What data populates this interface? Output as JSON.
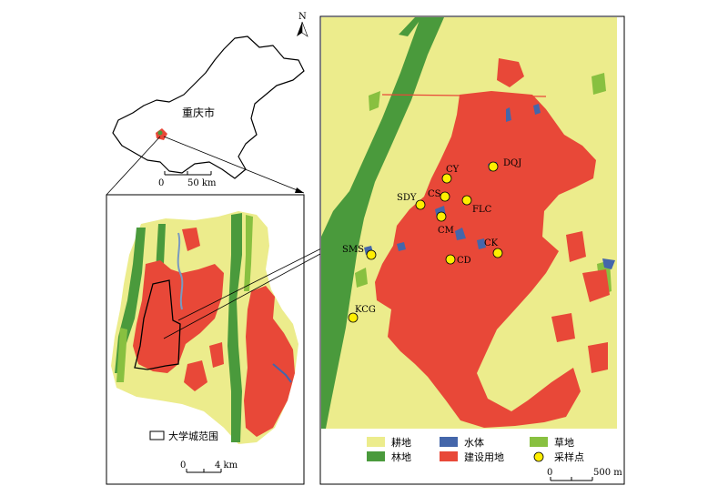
{
  "overview": {
    "region_label": "重庆市",
    "scale": {
      "zero": "0",
      "value": "50 km"
    }
  },
  "inset": {
    "boundary_legend_label": "大学城范围",
    "scale": {
      "zero": "0",
      "value": "4 km"
    }
  },
  "main_map": {
    "north_label": "N",
    "scale": {
      "zero": "0",
      "value": "500 m"
    },
    "sample_points": [
      {
        "label": "DQJ"
      },
      {
        "label": "CY"
      },
      {
        "label": "SDY"
      },
      {
        "label": "CS"
      },
      {
        "label": "FLC"
      },
      {
        "label": "CM"
      },
      {
        "label": "SMS"
      },
      {
        "label": "CK"
      },
      {
        "label": "CD"
      },
      {
        "label": "KCG"
      }
    ]
  },
  "legend": {
    "items": [
      {
        "label": "耕地",
        "color": "#ecec8c"
      },
      {
        "label": "水体",
        "color": "#4466aa"
      },
      {
        "label": "草地",
        "color": "#88c040"
      },
      {
        "label": "林地",
        "color": "#4a9a3c"
      },
      {
        "label": "建设用地",
        "color": "#e84838"
      },
      {
        "label": "采样点",
        "color": "#ffee00"
      }
    ]
  }
}
